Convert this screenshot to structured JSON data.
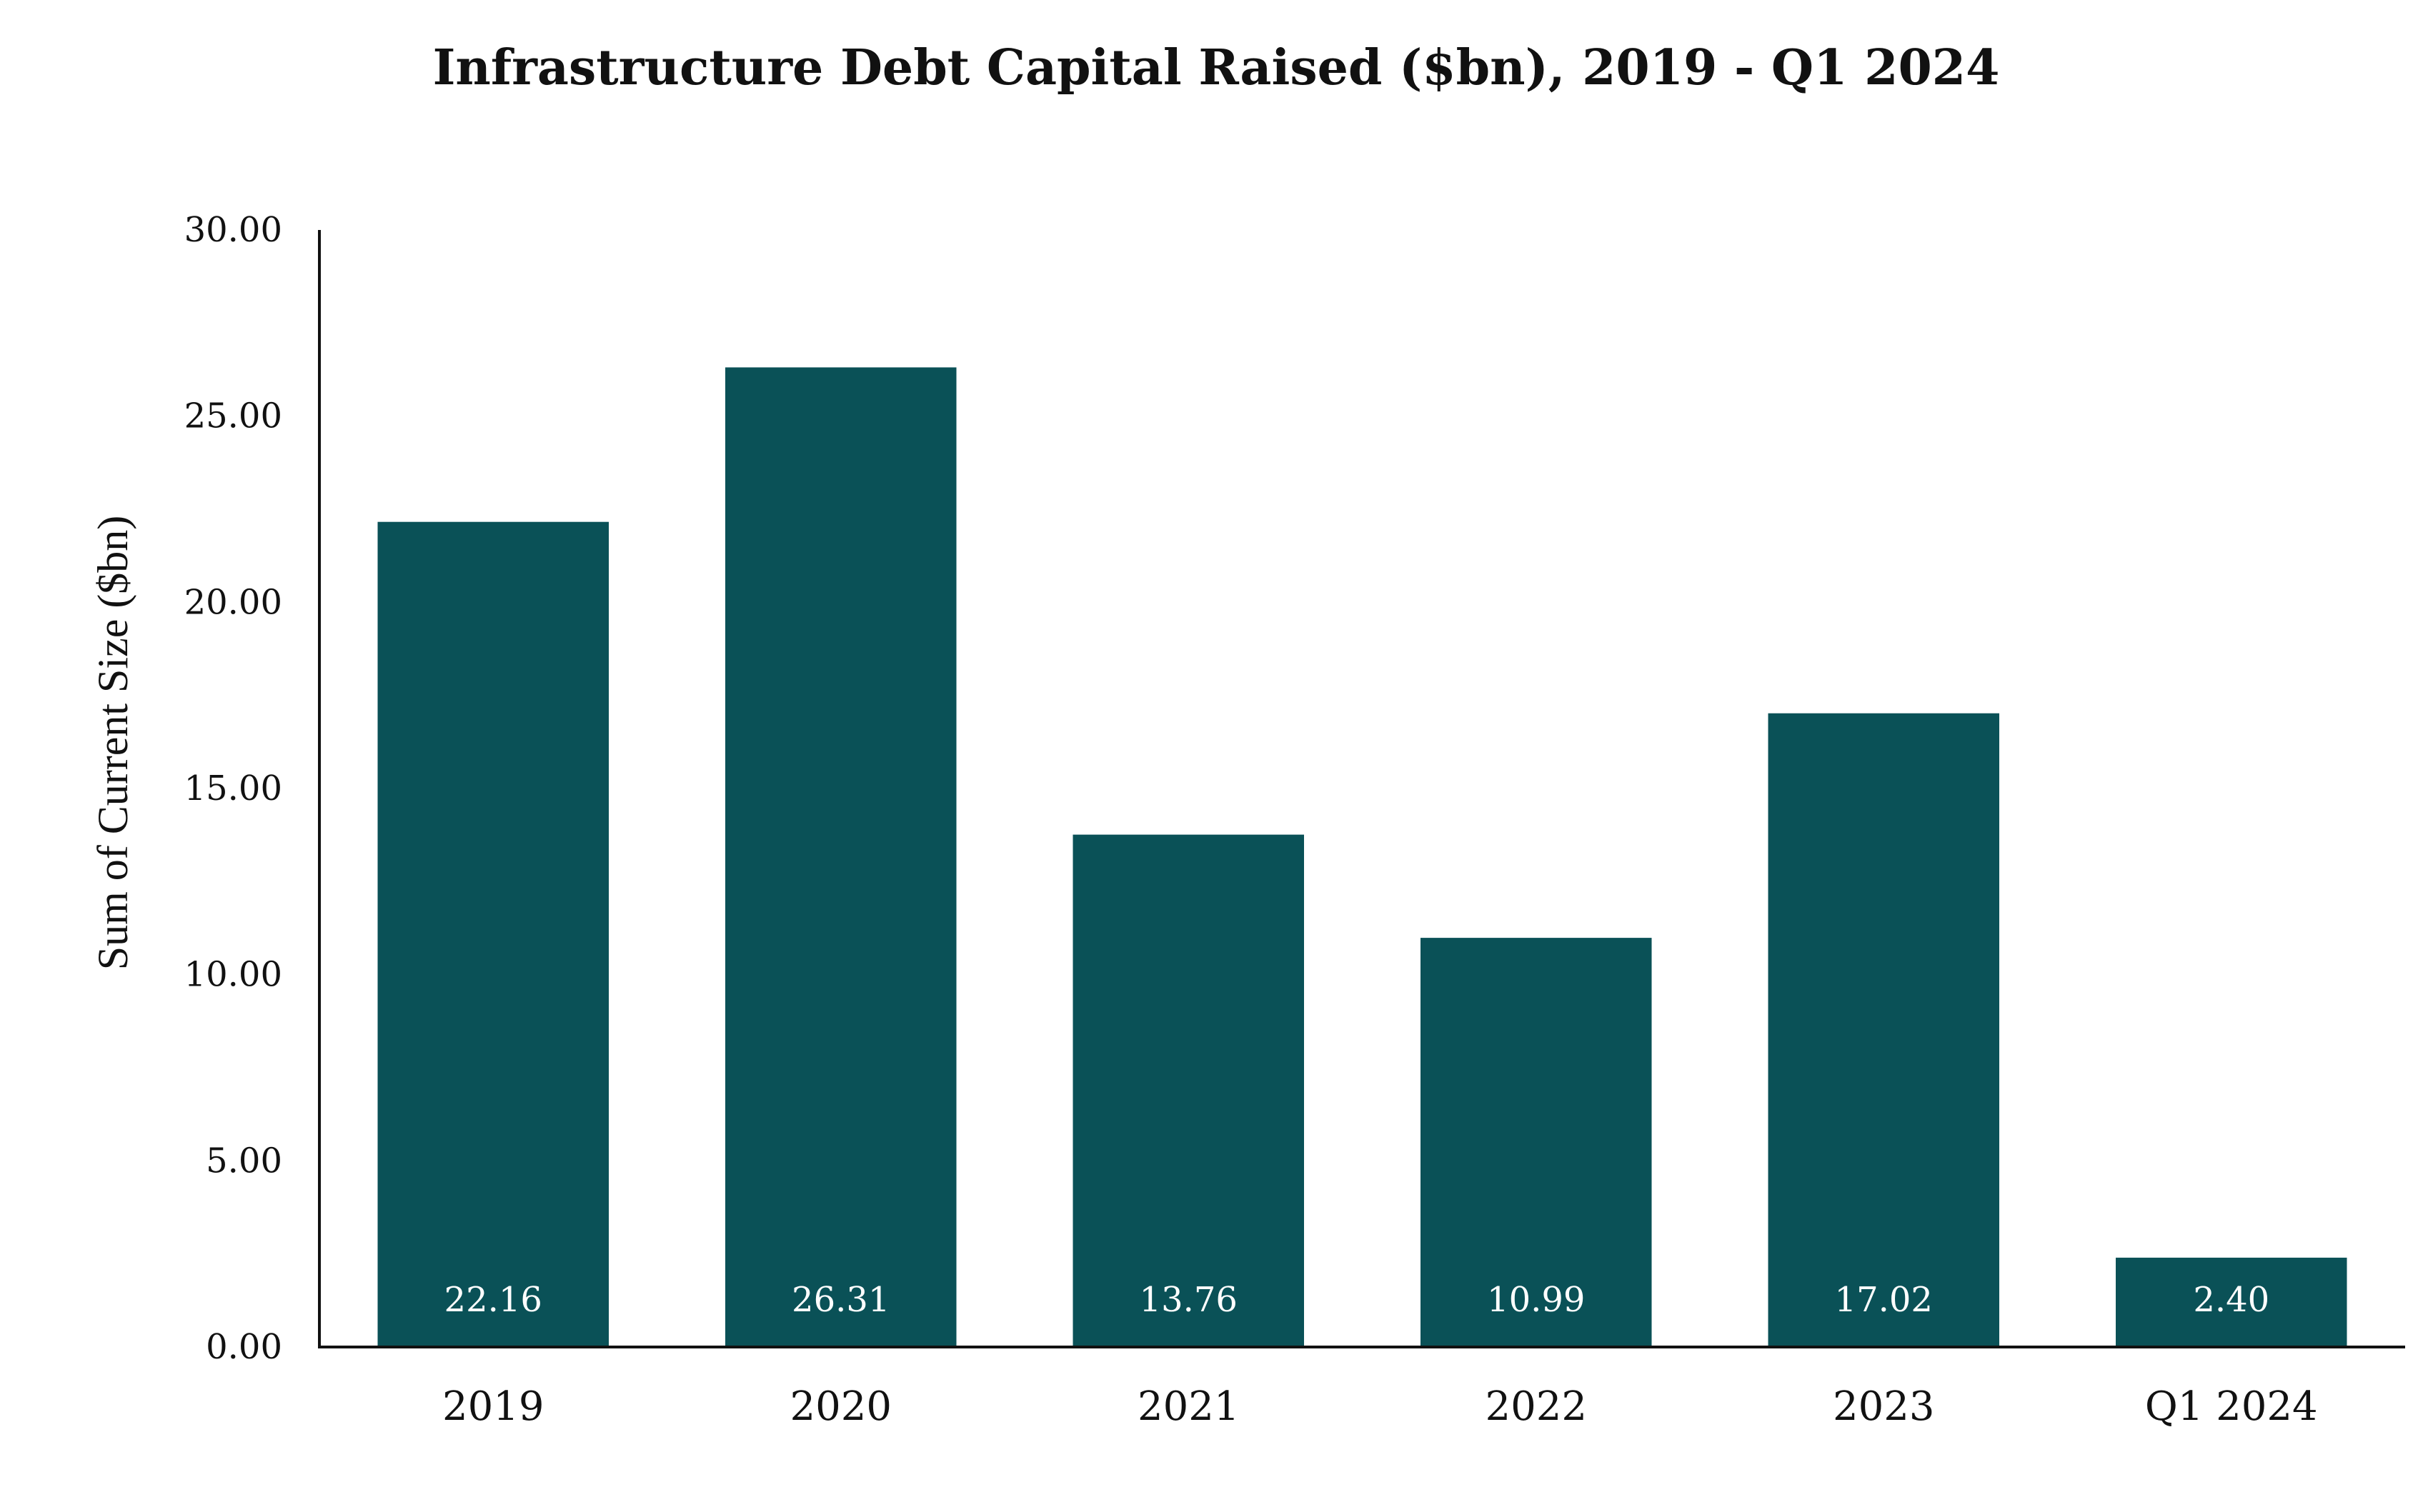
{
  "chart_data": {
    "type": "bar",
    "title": "Infrastructure Debt Capital Raised ($bn), 2019 - Q1 2024",
    "xlabel": "",
    "ylabel": "Sum of Current Size ($bn)",
    "categories": [
      "2019",
      "2020",
      "2021",
      "2022",
      "2023",
      "Q1 2024"
    ],
    "values": [
      22.16,
      26.31,
      13.76,
      10.99,
      17.02,
      2.4
    ],
    "data_labels": [
      "22.16",
      "26.31",
      "13.76",
      "10.99",
      "17.02",
      "2.40"
    ],
    "ylim": [
      0,
      30
    ],
    "yticks": [
      0,
      5,
      10,
      15,
      20,
      25,
      30
    ],
    "ytick_labels": [
      "0.00",
      "5.00",
      "10.00",
      "15.00",
      "20.00",
      "25.00",
      "30.00"
    ],
    "grid": false,
    "legend": "none",
    "bar_color": "#0a5157",
    "label_color": "#ffffff"
  }
}
